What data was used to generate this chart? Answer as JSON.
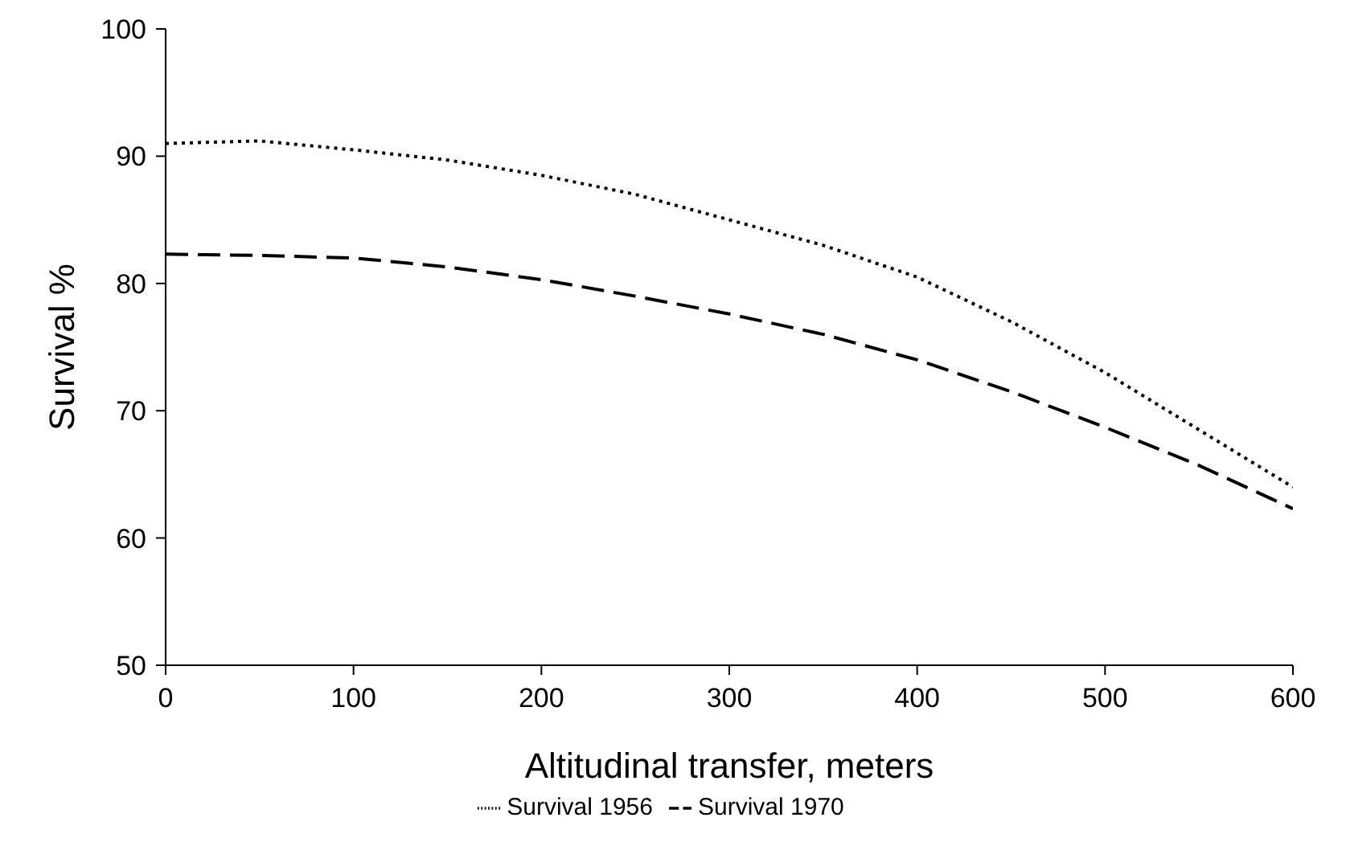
{
  "chart_data": {
    "type": "line",
    "xlabel": "Altitudinal transfer, meters",
    "ylabel": "Survival %",
    "x": [
      0,
      50,
      100,
      150,
      200,
      250,
      300,
      350,
      400,
      450,
      500,
      550,
      600
    ],
    "series": [
      {
        "name": "Survival 1956",
        "color": "#000000",
        "line_style": "dotted",
        "values": [
          91,
          91.2,
          90.5,
          89.7,
          88.5,
          87,
          85,
          83,
          80.5,
          77,
          73,
          68.5,
          64
        ]
      },
      {
        "name": "Survival 1970",
        "color": "#000000",
        "line_style": "dashed",
        "values": [
          82.3,
          82.2,
          82,
          81.3,
          80.3,
          79,
          77.6,
          76,
          74,
          71.5,
          68.7,
          65.7,
          62.3
        ]
      }
    ],
    "xlim": [
      0,
      600
    ],
    "xticks": [
      0,
      100,
      200,
      300,
      400,
      500,
      600
    ],
    "ylim": [
      50,
      100
    ],
    "yticks": [
      50,
      60,
      70,
      80,
      90,
      100
    ],
    "grid": false,
    "legend": "bottom",
    "marker": "none"
  }
}
